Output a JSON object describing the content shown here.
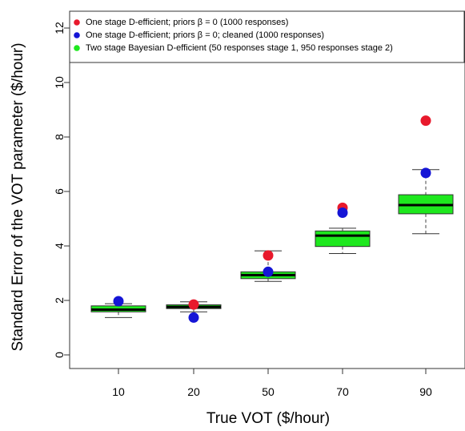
{
  "chart_data": {
    "type": "box",
    "title": "",
    "xlabel": "True VOT ($/hour)",
    "ylabel": "Standard Error of the VOT parameter ($/hour)",
    "ylim": [
      -0.5,
      12.5
    ],
    "yticks": [
      0,
      2,
      4,
      6,
      8,
      10,
      12
    ],
    "categories": [
      "10",
      "20",
      "50",
      "70",
      "90"
    ],
    "legend_position": "top",
    "series": [
      {
        "name": "One stage D-efficient; priors β = 0 (1000 responses)",
        "kind": "point",
        "color": "#e8192c",
        "values": [
          null,
          1.85,
          3.65,
          5.4,
          8.6
        ]
      },
      {
        "name": "One stage D-efficient; priors β = 0; cleaned (1000 responses)",
        "kind": "point",
        "color": "#1515d6",
        "values": [
          1.97,
          1.37,
          3.05,
          5.22,
          6.68
        ]
      },
      {
        "name": "Two stage Bayesian D-efficient (50 responses stage 1, 950 responses stage 2)",
        "kind": "box",
        "color": "#1ee81e",
        "boxes": [
          {
            "min": 1.37,
            "q1": 1.58,
            "median": 1.66,
            "q3": 1.8,
            "max": 1.88
          },
          {
            "min": 1.58,
            "q1": 1.7,
            "median": 1.76,
            "q3": 1.84,
            "max": 1.95
          },
          {
            "min": 2.7,
            "q1": 2.8,
            "median": 2.93,
            "q3": 3.05,
            "max": 3.82
          },
          {
            "min": 3.72,
            "q1": 3.98,
            "median": 4.38,
            "q3": 4.55,
            "max": 4.65
          },
          {
            "min": 4.45,
            "q1": 5.18,
            "median": 5.5,
            "q3": 5.88,
            "max": 6.8
          }
        ]
      }
    ],
    "legend": [
      "One stage D-efficient; priors β = 0 (1000 responses)",
      "One stage D-efficient; priors β = 0; cleaned (1000 responses)",
      "Two stage Bayesian D-efficient (50 responses stage 1, 950 responses stage 2)"
    ]
  }
}
